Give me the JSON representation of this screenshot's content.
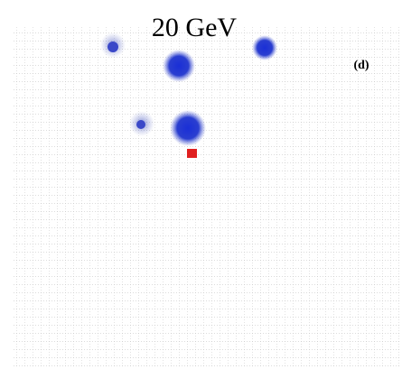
{
  "title": "20 GeV",
  "panel_label": "(d)"
}
